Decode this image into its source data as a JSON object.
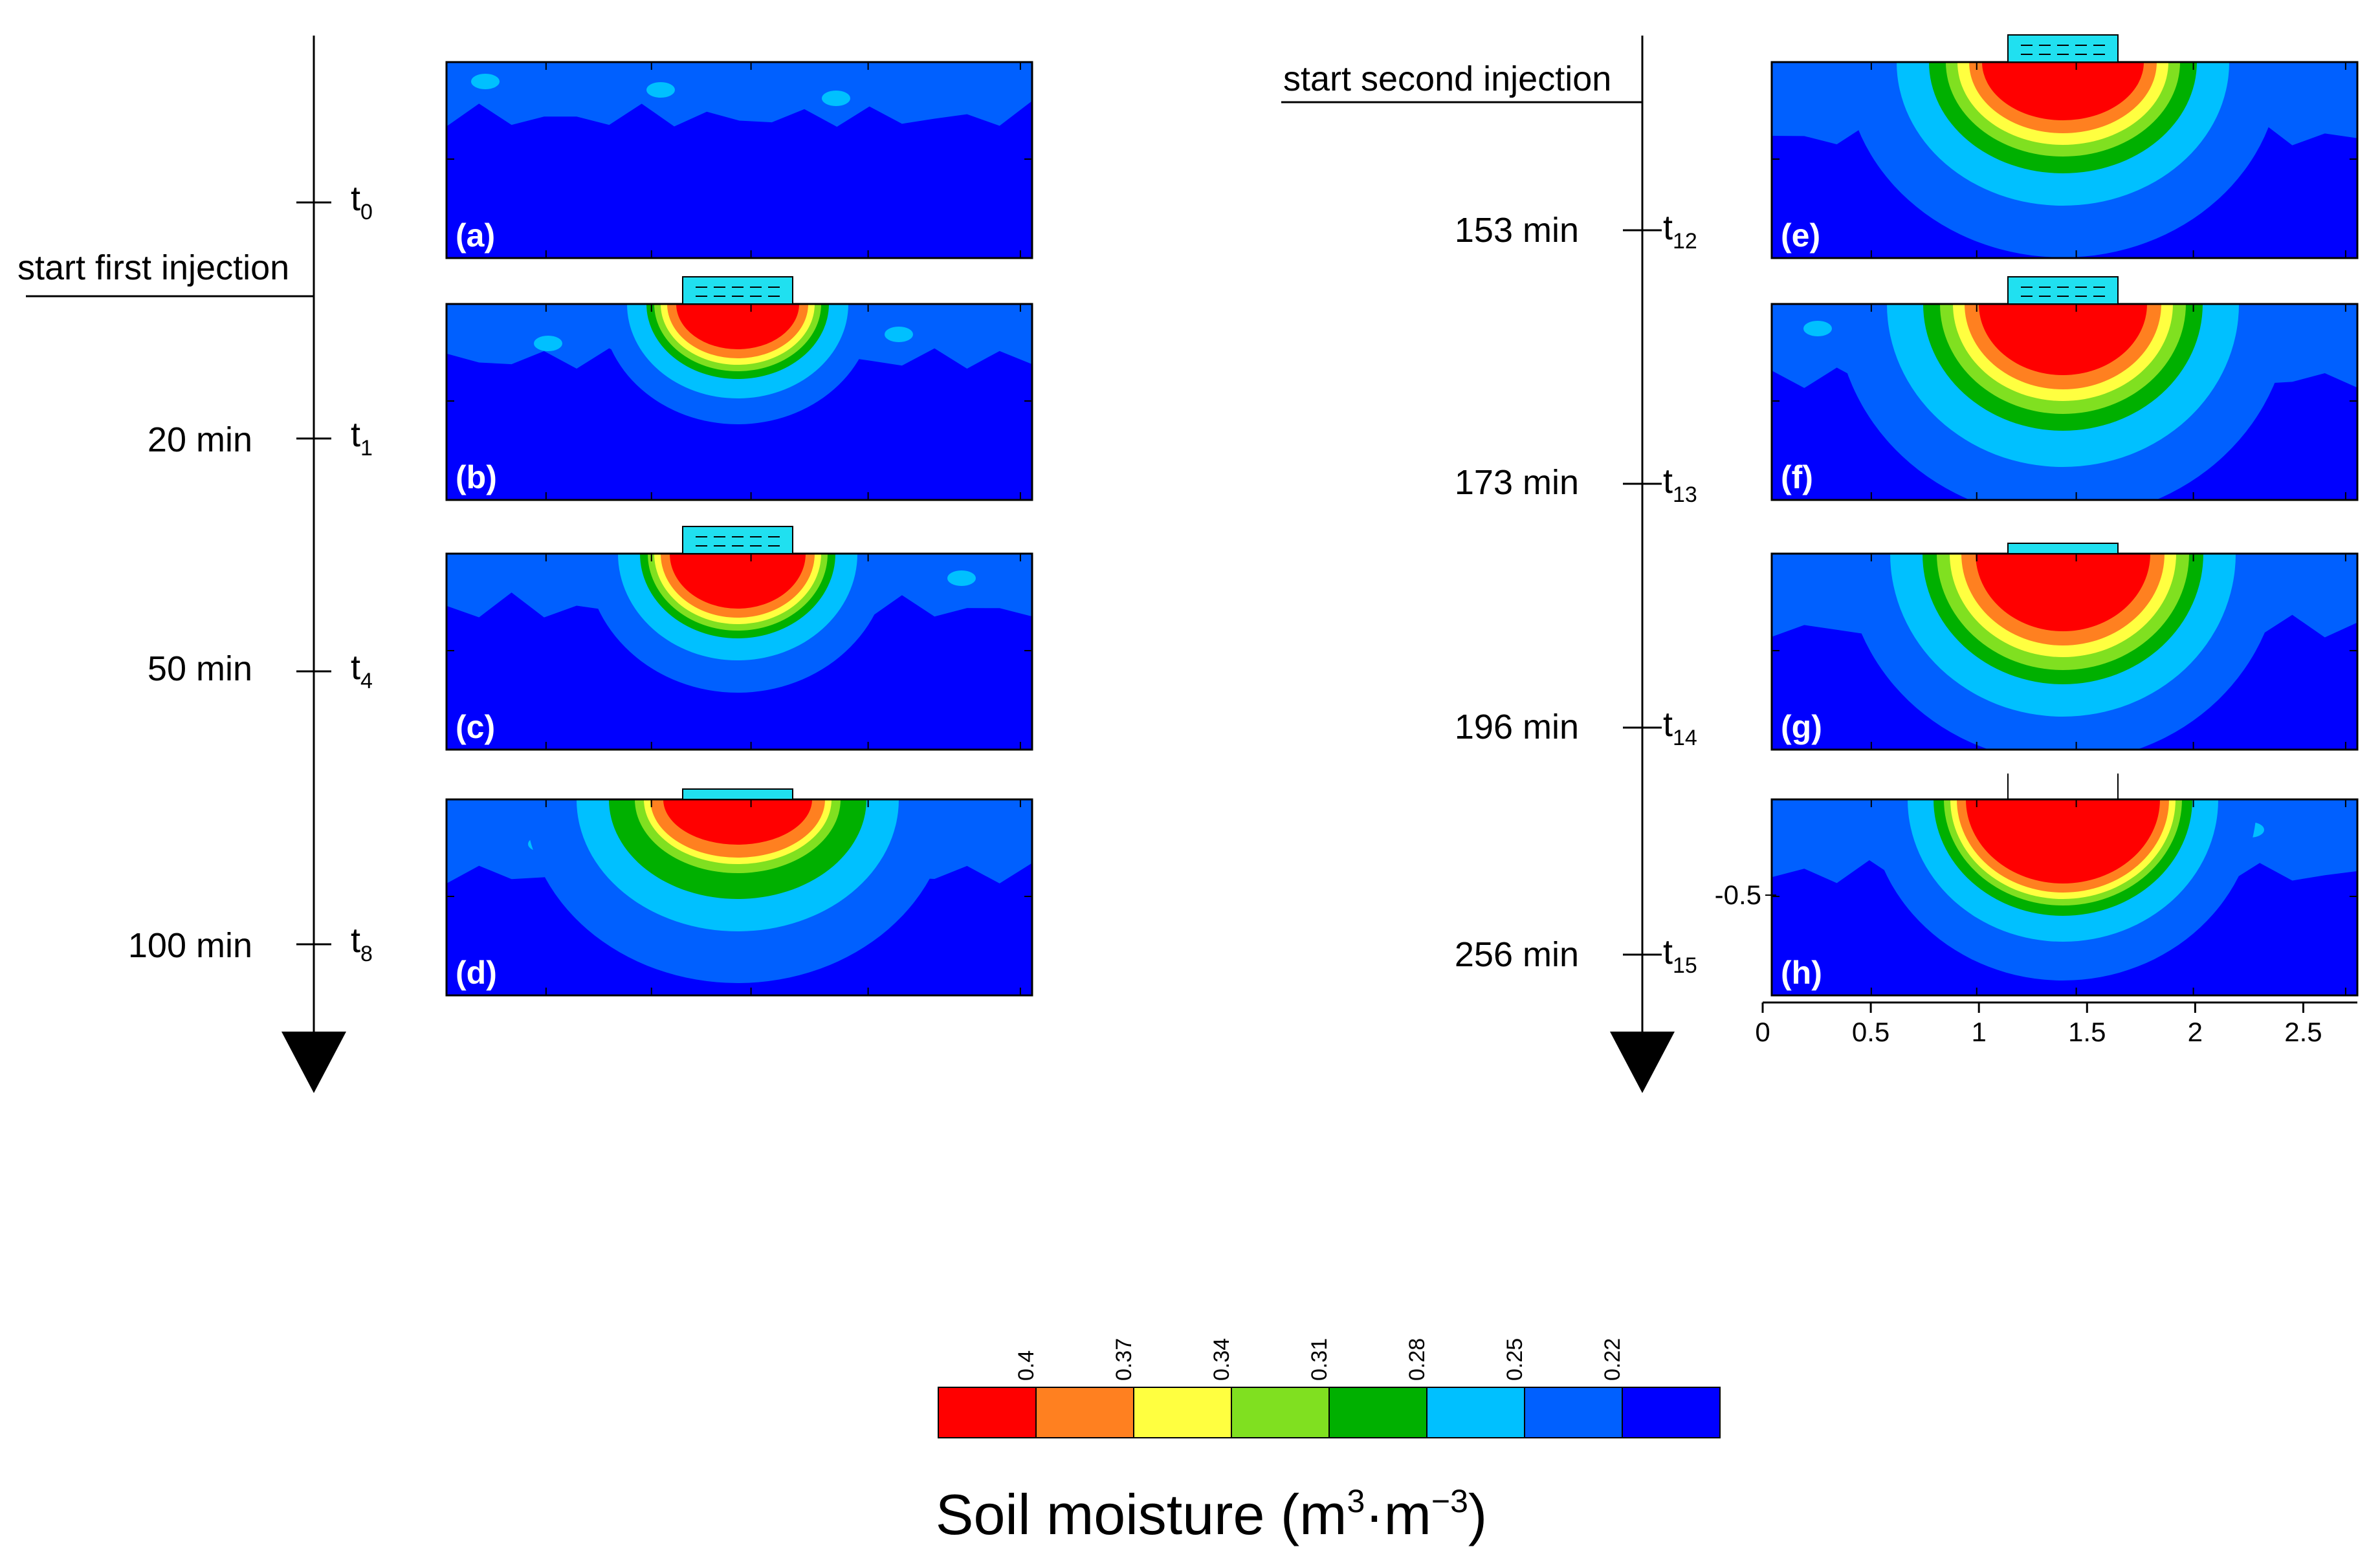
{
  "figure": {
    "left_timeline": {
      "event_label": "start first injection",
      "entries": [
        {
          "time": "",
          "t": "t",
          "sub": "0"
        },
        {
          "time": "20 min",
          "t": "t",
          "sub": "1"
        },
        {
          "time": "50 min",
          "t": "t",
          "sub": "4"
        },
        {
          "time": "100 min",
          "t": "t",
          "sub": "8"
        }
      ]
    },
    "right_timeline": {
      "event_label": "start second injection",
      "entries": [
        {
          "time": "153 min",
          "t": "t",
          "sub": "12"
        },
        {
          "time": "173 min",
          "t": "t",
          "sub": "13"
        },
        {
          "time": "196 min",
          "t": "t",
          "sub": "14"
        },
        {
          "time": "256 min",
          "t": "t",
          "sub": "15"
        }
      ]
    },
    "panels": [
      {
        "letter": "(a)",
        "plume": 0,
        "water": "none"
      },
      {
        "letter": "(b)",
        "plume": 1,
        "water": "dashed"
      },
      {
        "letter": "(c)",
        "plume": 2,
        "water": "dashed"
      },
      {
        "letter": "(d)",
        "plume": 3,
        "water": "thin"
      },
      {
        "letter": "(e)",
        "plume": 4,
        "water": "dashed"
      },
      {
        "letter": "(f)",
        "plume": 5,
        "water": "dashed"
      },
      {
        "letter": "(g)",
        "plume": 6,
        "water": "thin"
      },
      {
        "letter": "(h)",
        "plume": 7,
        "water": "none"
      }
    ],
    "x_axis": {
      "ticks": [
        "0",
        "0.5",
        "1",
        "1.5",
        "2",
        "2.5"
      ],
      "values": [
        0,
        0.5,
        1,
        1.5,
        2,
        2.5
      ],
      "xlim": [
        0,
        2.75
      ]
    },
    "y_axis": {
      "ticks": [
        "-0.5"
      ]
    }
  },
  "legend": {
    "title_prefix": "Soil moisture (m",
    "title_exp1": "3",
    "title_mid": "·m",
    "title_exp2": "−3",
    "title_suffix": ")",
    "tick_labels": [
      "0.4",
      "0.37",
      "0.34",
      "0.31",
      "0.28",
      "0.25",
      "0.22"
    ],
    "colors": [
      "#ff0000",
      "#ff8020",
      "#ffff40",
      "#80e020",
      "#00b000",
      "#00c0ff",
      "#0060ff",
      "#0000ff"
    ]
  },
  "colors": {
    "red": "#ff0000",
    "orange": "#ff8020",
    "yellow": "#ffff40",
    "lightgreen": "#80e020",
    "green": "#00b000",
    "cyan": "#00c0ff",
    "midblue": "#0060ff",
    "deepblue": "#0000ff",
    "water": "#20e0f0"
  }
}
